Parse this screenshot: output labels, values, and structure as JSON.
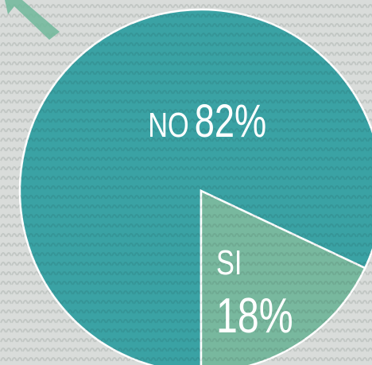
{
  "chart_data": {
    "type": "pie",
    "categories": [
      "NO",
      "SI"
    ],
    "values": [
      82,
      18
    ],
    "value_labels": [
      "82%",
      "18%"
    ],
    "colors": [
      "#3aa2a4",
      "#78b89e"
    ]
  }
}
